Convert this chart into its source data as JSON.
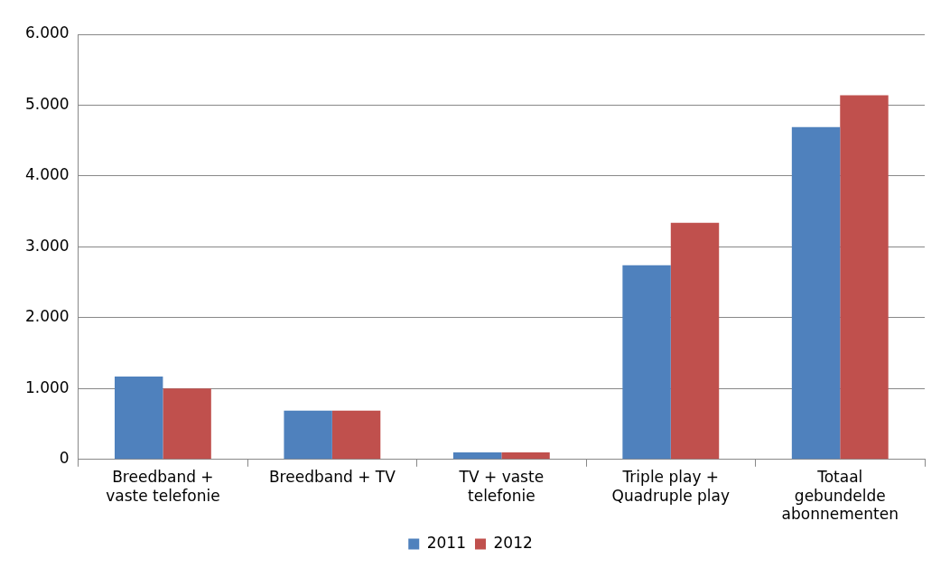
{
  "chart_data": {
    "type": "bar",
    "categories": [
      "Breedband + vaste telefonie",
      "Breedband + TV",
      "TV + vaste telefonie",
      "Triple play + Quadruple play",
      "Totaal gebundelde abonnementen"
    ],
    "series": [
      {
        "name": "2011",
        "color": "#4f81bd",
        "values": [
          1170,
          690,
          100,
          2740,
          4690
        ]
      },
      {
        "name": "2012",
        "color": "#c0504d",
        "values": [
          1000,
          690,
          100,
          3340,
          5140
        ]
      }
    ],
    "ylim": [
      0,
      6000
    ],
    "yticks": [
      {
        "value": 0,
        "label": "0"
      },
      {
        "value": 1000,
        "label": "1.000"
      },
      {
        "value": 2000,
        "label": "2.000"
      },
      {
        "value": 3000,
        "label": "3.000"
      },
      {
        "value": 4000,
        "label": "4.000"
      },
      {
        "value": 5000,
        "label": "5.000"
      },
      {
        "value": 6000,
        "label": "6.000"
      }
    ],
    "grid": "y",
    "legend": "bottom"
  }
}
